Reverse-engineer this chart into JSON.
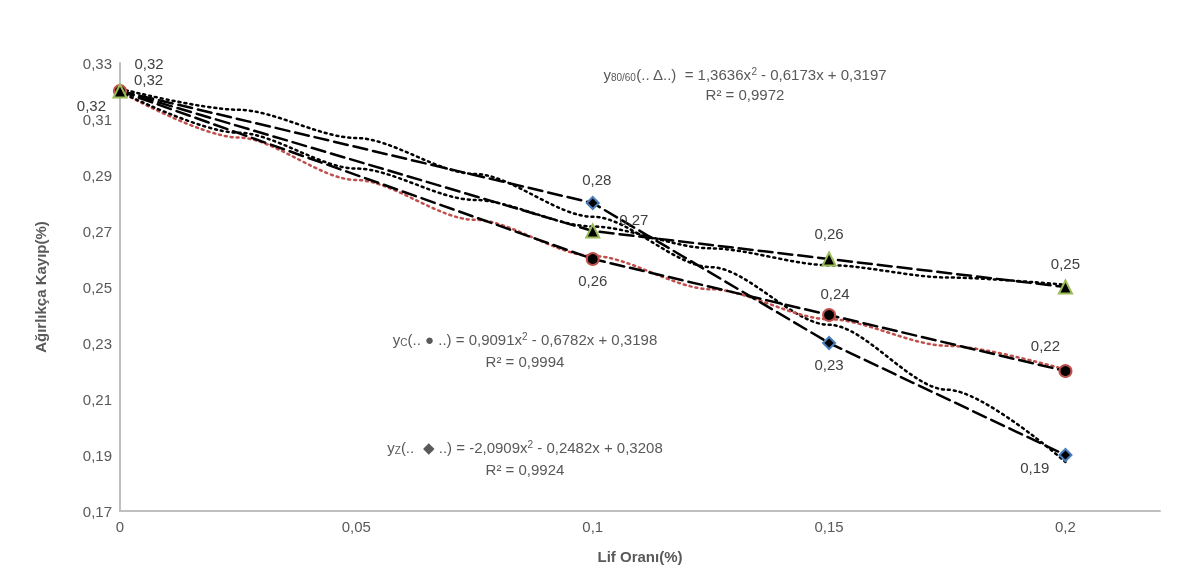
{
  "chart_data": {
    "type": "line",
    "xlabel": "Lif Oranı(%)",
    "ylabel": "Ağırlıkça Kayıp(%)",
    "x": [
      0,
      0.1,
      0.15,
      0.2
    ],
    "xlim": [
      0,
      0.22
    ],
    "xticks": [
      {
        "value": 0,
        "label": "0"
      },
      {
        "value": 0.05,
        "label": "0,05"
      },
      {
        "value": 0.1,
        "label": "0,1"
      },
      {
        "value": 0.15,
        "label": "0,15"
      },
      {
        "value": 0.2,
        "label": "0,2"
      }
    ],
    "ylim": [
      0.17,
      0.33
    ],
    "yticks": [
      {
        "value": 0.17,
        "label": "0,17"
      },
      {
        "value": 0.19,
        "label": "0,19"
      },
      {
        "value": 0.21,
        "label": "0,21"
      },
      {
        "value": 0.23,
        "label": "0,23"
      },
      {
        "value": 0.25,
        "label": "0,25"
      },
      {
        "value": 0.27,
        "label": "0,27"
      },
      {
        "value": 0.29,
        "label": "0,29"
      },
      {
        "value": 0.31,
        "label": "0,31"
      },
      {
        "value": 0.33,
        "label": "0,33"
      }
    ],
    "grid": false,
    "line_style": "dashed",
    "series": [
      {
        "color": "#4a7ebb",
        "marker": "diamond",
        "values": [
          0.32,
          0.28,
          0.23,
          0.19
        ],
        "value_labels": [
          "0,32",
          "0,28",
          "0,23",
          "0,19"
        ]
      },
      {
        "color": "#c0504d",
        "marker": "circle",
        "values": [
          0.32,
          0.26,
          0.24,
          0.22
        ],
        "value_labels": [
          "0,32",
          "0,26",
          "0,24",
          "0,22"
        ]
      },
      {
        "color": "#9bbb59",
        "marker": "triangle",
        "values": [
          0.32,
          0.27,
          0.26,
          0.25
        ],
        "value_labels": [
          "0,32",
          "0,27",
          "0,26",
          "0,25"
        ]
      },
      {
        "color": "#000000",
        "marker": "none",
        "line_style": "dotted",
        "x": [
          0,
          0.025,
          0.05,
          0.075,
          0.1,
          0.125,
          0.15,
          0.175,
          0.2
        ],
        "values": [
          0.3208,
          0.3133,
          0.3032,
          0.2904,
          0.2751,
          0.2571,
          0.2365,
          0.2133,
          0.1875
        ]
      },
      {
        "color": "#c0504d",
        "marker": "none",
        "line_style": "dotted",
        "x": [
          0,
          0.025,
          0.05,
          0.075,
          0.1,
          0.125,
          0.15,
          0.175,
          0.2
        ],
        "values": [
          0.3198,
          0.3034,
          0.2882,
          0.274,
          0.2611,
          0.2492,
          0.2385,
          0.229,
          0.2205
        ]
      },
      {
        "color": "#000000",
        "marker": "none",
        "line_style": "dotted",
        "x": [
          0,
          0.025,
          0.05,
          0.075,
          0.1,
          0.125,
          0.15,
          0.175,
          0.2
        ],
        "values": [
          0.3197,
          0.3051,
          0.2923,
          0.2811,
          0.2716,
          0.2638,
          0.2578,
          0.2534,
          0.2508
        ]
      }
    ],
    "annotations": [
      "y$_{80/60}$(.. Δ..)  = 1,3636x$^{2}$ - 0,6173x + 0,3197",
      "R² = 0,9972",
      "y$_{C}$(.. ● ..) = 0,9091x$^{2}$ - 0,6782x + 0,3198",
      "R² = 0,9994",
      "y$_{Z}$(..  ◆ ..) = -2,0909x$^{2}$ - 0,2482x + 0,3208",
      "R² = 0,9924"
    ]
  }
}
